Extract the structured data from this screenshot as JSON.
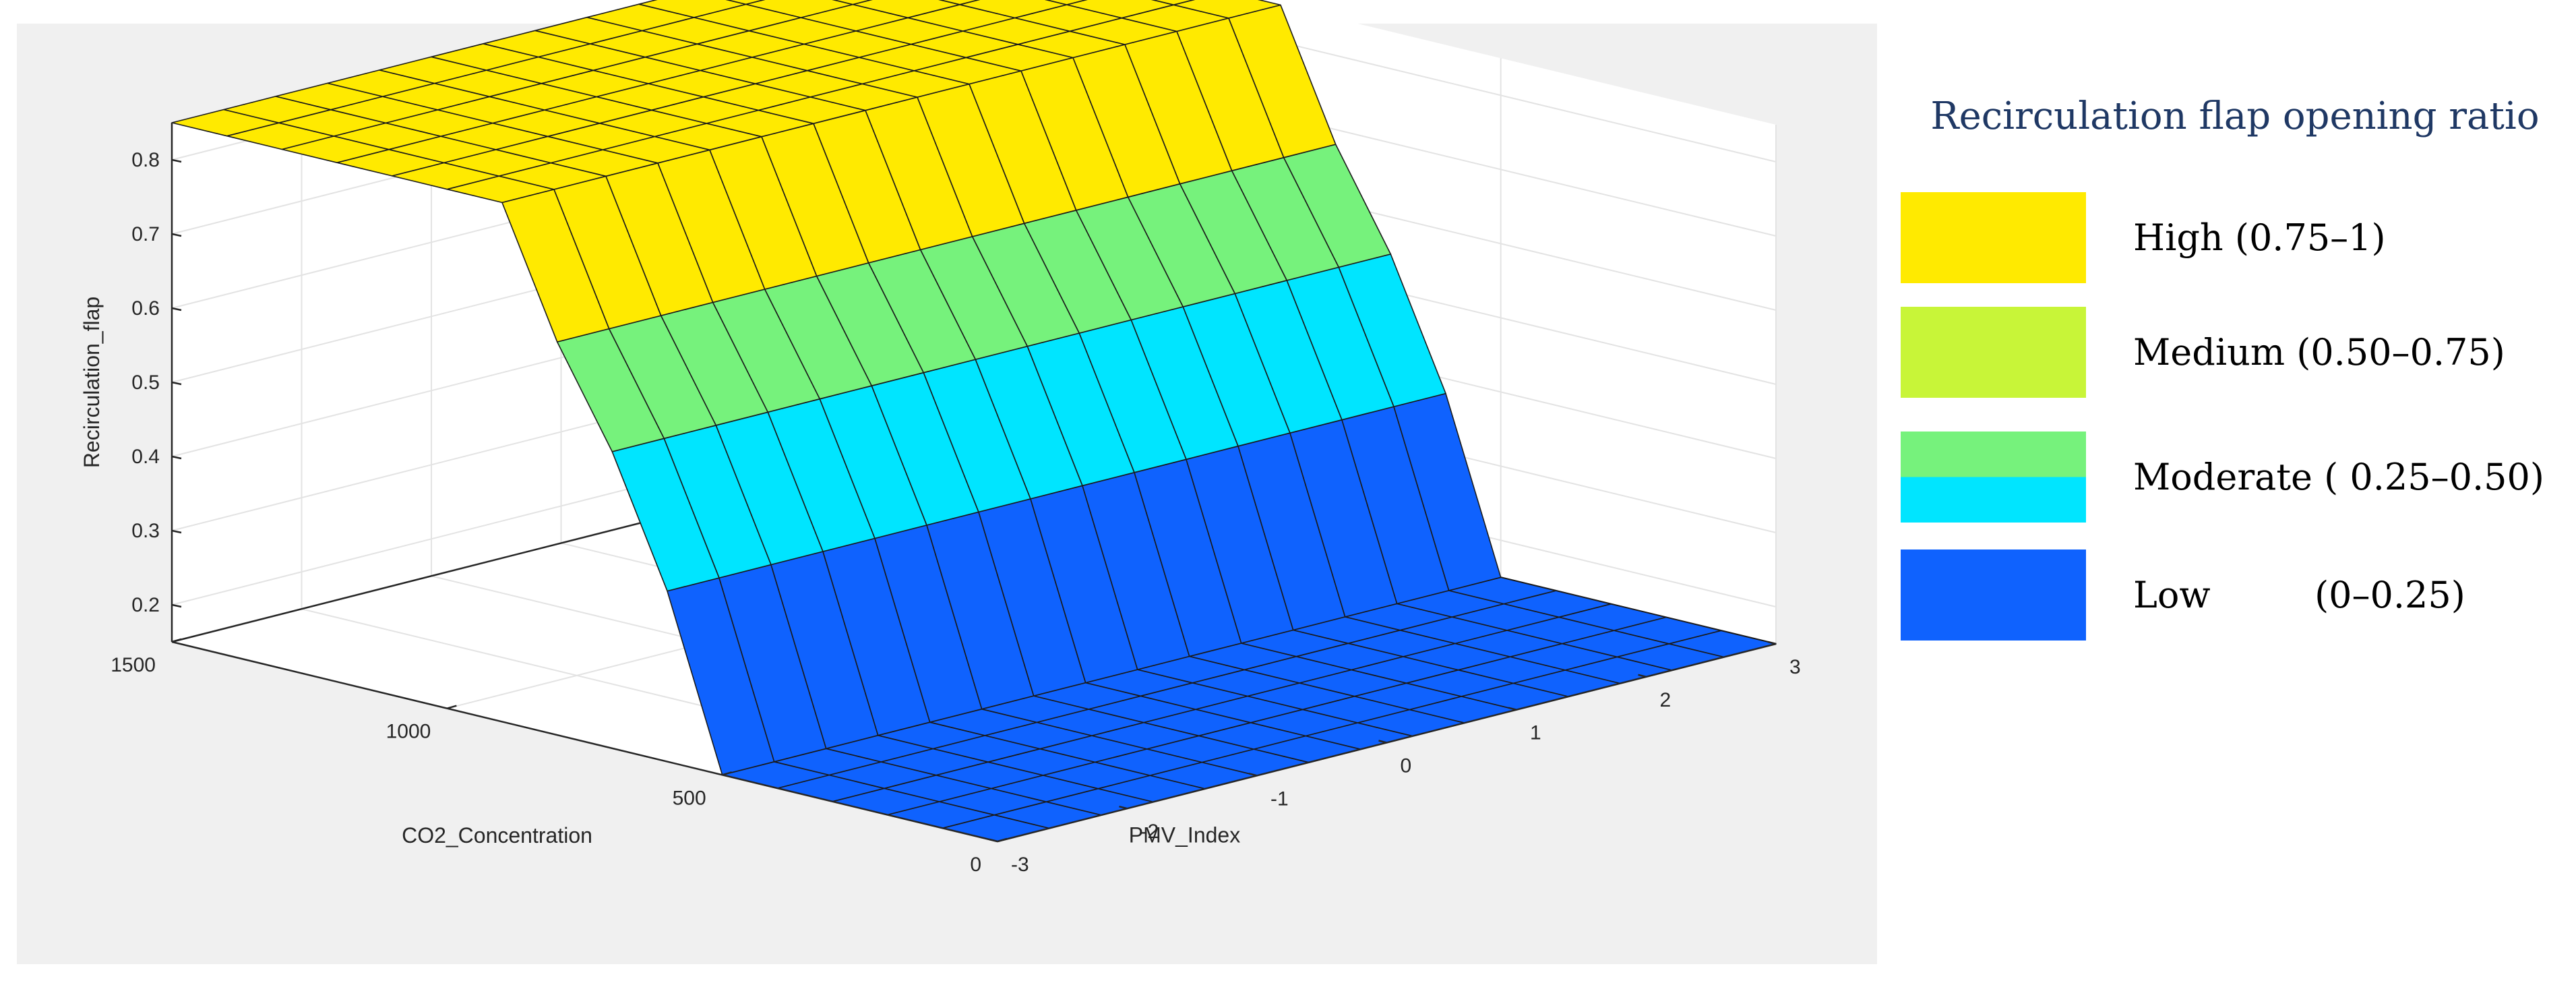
{
  "chart_data": {
    "type": "surface3d",
    "title": "",
    "zlabel": "Recirculation_flap",
    "xlabel": "CO2_Concentration",
    "ylabel": "PMV_Index",
    "xlim": [
      0,
      1500
    ],
    "ylim": [
      -3,
      3
    ],
    "zlim": [
      0.15,
      0.85
    ],
    "x_ticks": [
      0,
      500,
      1000,
      1500
    ],
    "y_ticks": [
      -3,
      -2,
      -1,
      0,
      1,
      2,
      3
    ],
    "z_ticks": [
      0.2,
      0.3,
      0.4,
      0.5,
      0.6,
      0.7,
      0.8
    ],
    "grid": true,
    "surface": {
      "x": [
        0,
        100,
        200,
        300,
        400,
        500,
        600,
        700,
        800,
        900,
        1000,
        1100,
        1200,
        1300,
        1400,
        1500
      ],
      "z_by_x": [
        0.15,
        0.15,
        0.15,
        0.15,
        0.15,
        0.15,
        0.38,
        0.55,
        0.68,
        0.85,
        0.85,
        0.85,
        0.85,
        0.85,
        0.85,
        0.85
      ],
      "y_steps": 15,
      "note_constant_along_y": true
    },
    "colorbands": [
      {
        "max": 0.36,
        "color": "#0f62fe"
      },
      {
        "max": 0.5,
        "color": "#00e5ff"
      },
      {
        "max": 0.62,
        "color": "#76f27c"
      },
      {
        "max": 0.75,
        "color": "#c8f538"
      },
      {
        "max": 1.0,
        "color": "#ffea00"
      }
    ]
  },
  "legend": {
    "title": "Recirculation flap opening ratio",
    "items": [
      {
        "label": "High (0.75–1)",
        "color": "#ffea00",
        "color2": ""
      },
      {
        "label": "Medium (0.50–0.75)",
        "color": "#c8f538",
        "color2": ""
      },
      {
        "label": "Moderate ( 0.25–0.50)",
        "color": "#76f27c",
        "color2": "#00e5ff"
      },
      {
        "label": "Low         (0–0.25)",
        "color": "#0f62fe",
        "color2": ""
      }
    ]
  },
  "colors": {
    "panel_bg": "#f0f0f0",
    "axes_bg": "#ffffff",
    "grid": "#e3e3e3",
    "axis": "#262626"
  }
}
